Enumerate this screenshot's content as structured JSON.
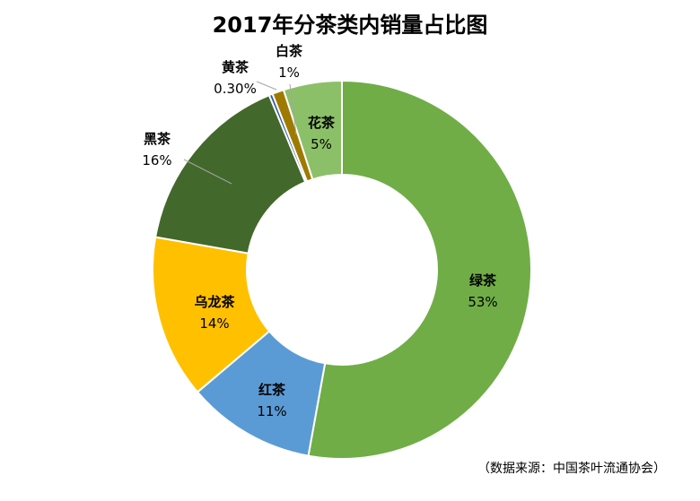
{
  "chart_data": {
    "type": "pie",
    "variant": "donut",
    "title": "2017年分茶类内销量占比图",
    "start": "top",
    "direction": "clockwise",
    "categories": [
      "绿茶",
      "红茶",
      "乌龙茶",
      "黑茶",
      "黄茶",
      "白茶",
      "花茶"
    ],
    "values": [
      53,
      11,
      14,
      16,
      0.3,
      1,
      5
    ],
    "data_labels": [
      "53%",
      "11%",
      "14%",
      "16%",
      "0.30%",
      "1%",
      "5%"
    ],
    "colors": [
      "#70AD47",
      "#5B9BD5",
      "#FFC000",
      "#43682B",
      "#2E5C9C",
      "#9E7A00",
      "#8CC068"
    ],
    "legend": "none",
    "source": "（数据来源：中国茶叶流通协会）"
  }
}
